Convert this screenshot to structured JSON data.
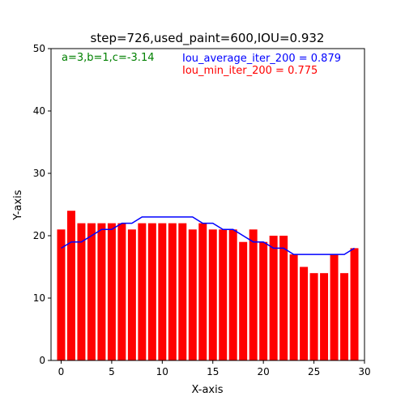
{
  "chart_data": {
    "type": "bar",
    "title": "step=726,used_paint=600,IOU=0.932",
    "xlabel": "X-axis",
    "ylabel": "Y-axis",
    "xlim": [
      -1,
      30
    ],
    "ylim": [
      0,
      50
    ],
    "xticks": [
      0,
      5,
      10,
      15,
      20,
      25,
      30
    ],
    "yticks": [
      0,
      10,
      20,
      30,
      40,
      50
    ],
    "grid": false,
    "bar_color": "#ff0000",
    "line_color": "#0000ff",
    "x": [
      0,
      1,
      2,
      3,
      4,
      5,
      6,
      7,
      8,
      9,
      10,
      11,
      12,
      13,
      14,
      15,
      16,
      17,
      18,
      19,
      20,
      21,
      22,
      23,
      24,
      25,
      26,
      27,
      28,
      29
    ],
    "bars": [
      21,
      24,
      22,
      22,
      22,
      22,
      22,
      21,
      22,
      22,
      22,
      22,
      22,
      21,
      22,
      21,
      21,
      21,
      19,
      21,
      19,
      20,
      20,
      17,
      15,
      14,
      14,
      17,
      14,
      18
    ],
    "line": [
      18,
      19,
      19,
      20,
      21,
      21,
      22,
      22,
      23,
      23,
      23,
      23,
      23,
      23,
      22,
      22,
      21,
      21,
      20,
      19,
      19,
      18,
      18,
      17,
      17,
      17,
      17,
      17,
      17,
      18
    ],
    "annotations": [
      {
        "text": "a=3,b=1,c=-3.14",
        "color": "#008000"
      },
      {
        "text": "Iou_average_iter_200 = 0.879",
        "color": "#0000ff"
      },
      {
        "text": "Iou_min_iter_200 = 0.775",
        "color": "#ff0000"
      }
    ]
  }
}
